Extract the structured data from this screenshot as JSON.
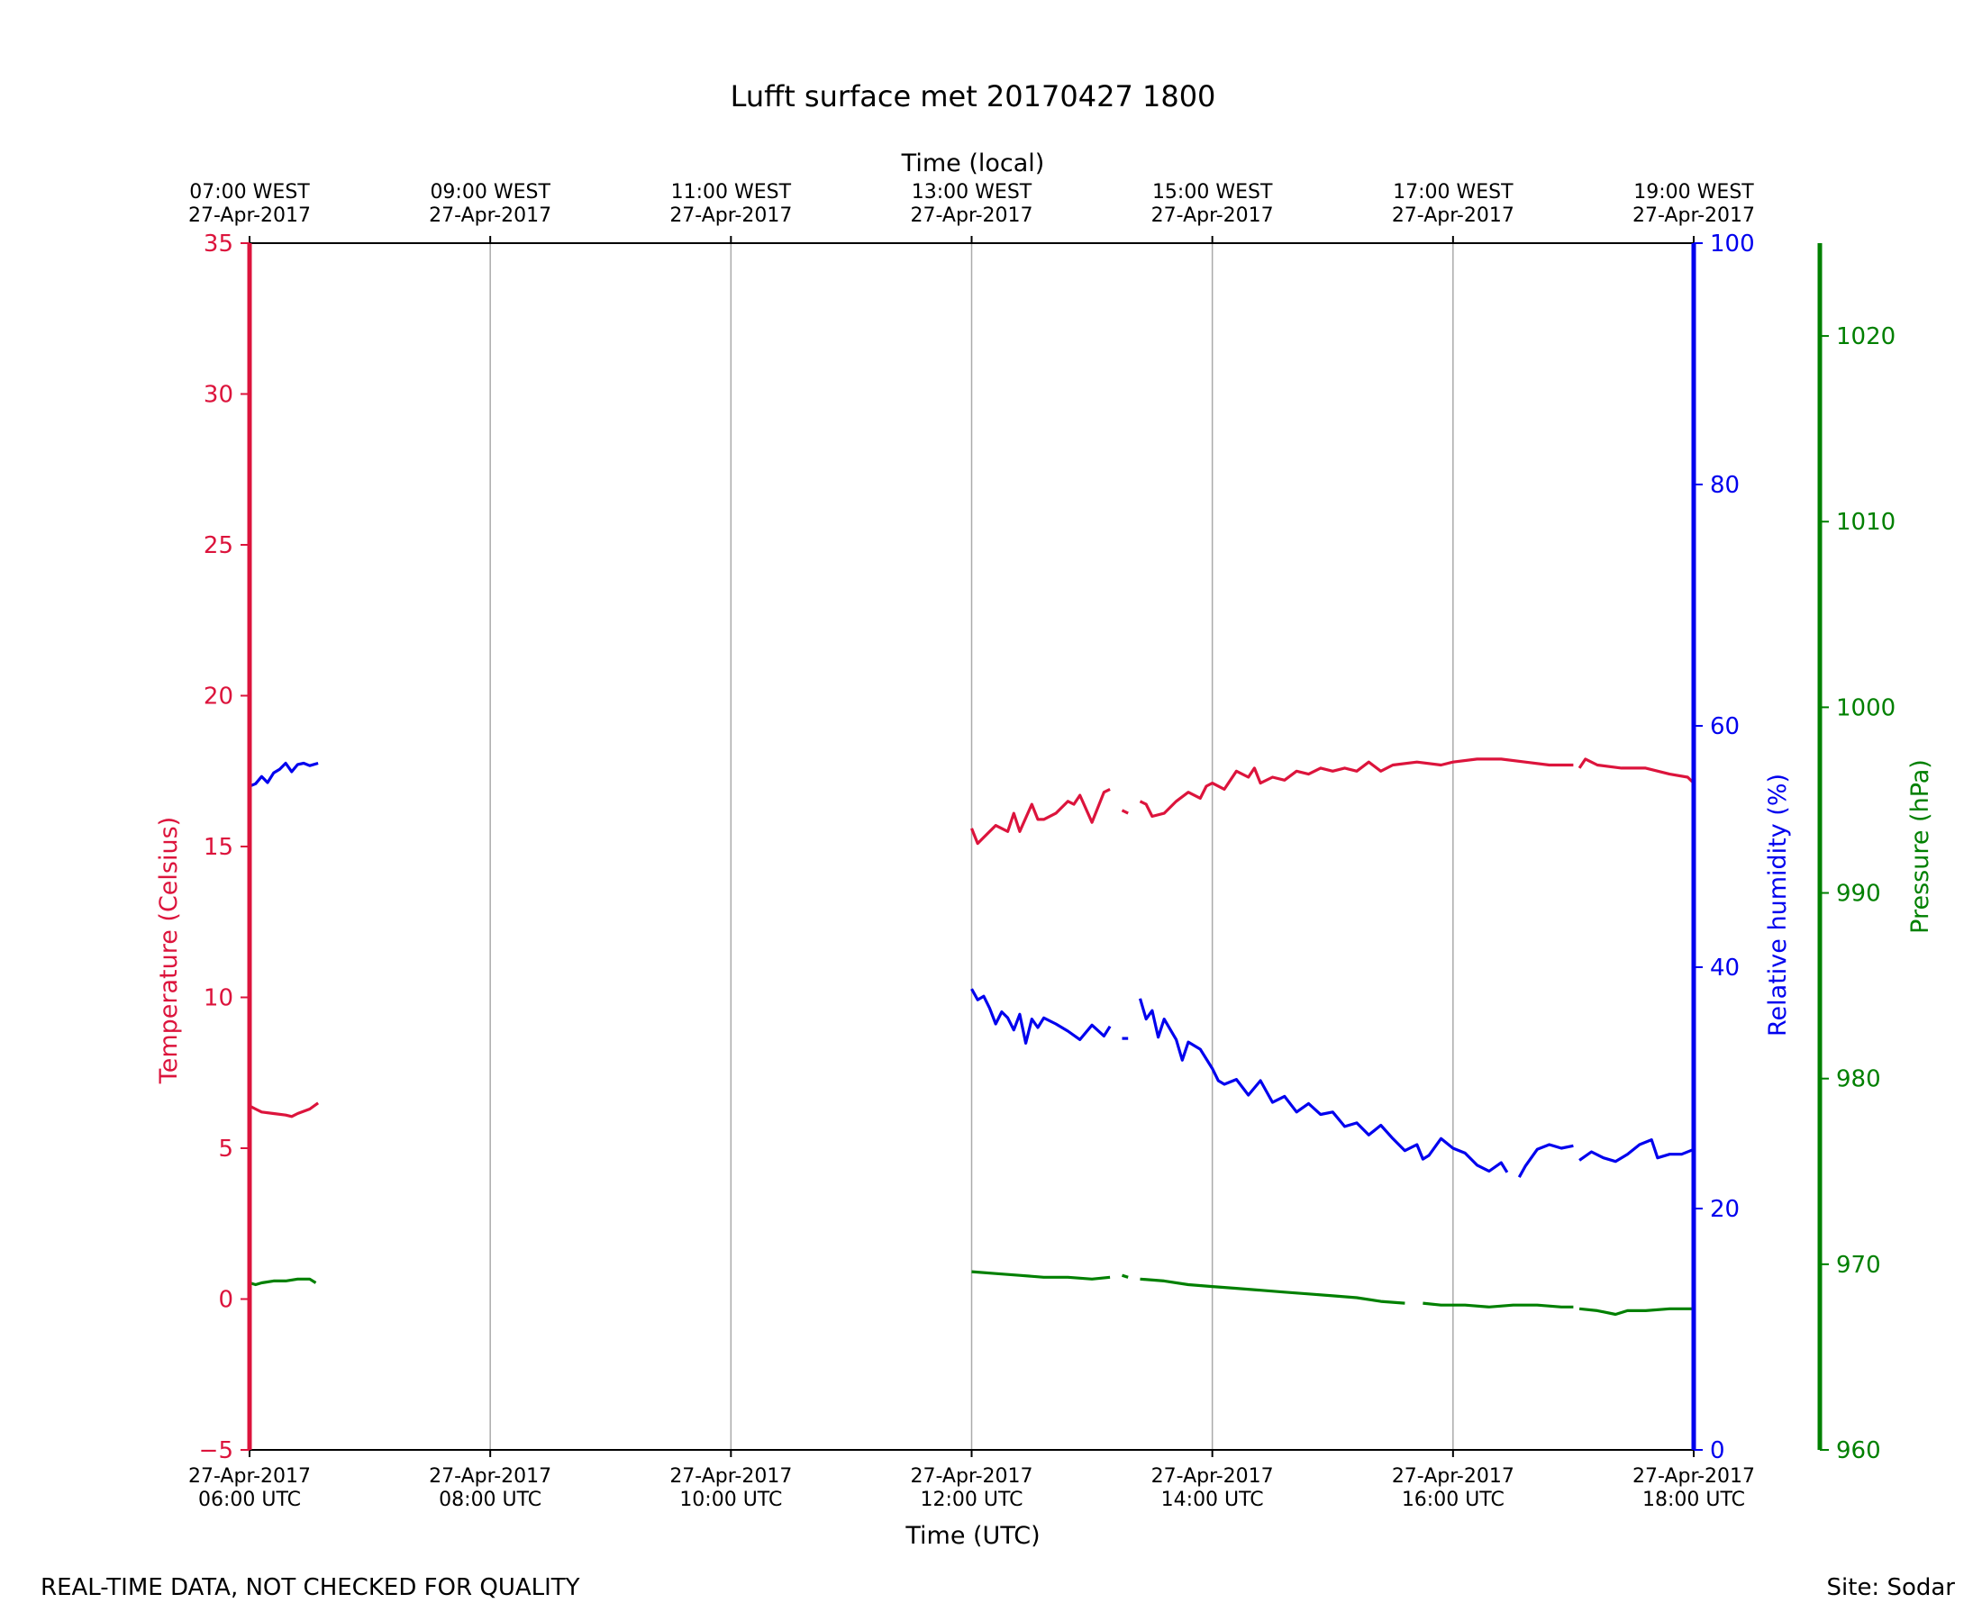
{
  "footer": {
    "disclaimer": "REAL-TIME DATA, NOT CHECKED FOR QUALITY",
    "site": "Site: Sodar"
  },
  "colors": {
    "temperature": "#dc143c",
    "humidity": "#0000ee",
    "pressure": "#008000",
    "grid": "#aaaaaa"
  },
  "chart_data": {
    "type": "line",
    "title": "Lufft surface met 20170427 1800",
    "xlabel": "Time (UTC)",
    "x2label": "Time (local)",
    "xlim_hours_utc": [
      6,
      18
    ],
    "x_ticks": [
      {
        "hour": 6,
        "date": "27-Apr-2017",
        "utc": "06:00 UTC",
        "local": "07:00 WEST"
      },
      {
        "hour": 8,
        "date": "27-Apr-2017",
        "utc": "08:00 UTC",
        "local": "09:00 WEST"
      },
      {
        "hour": 10,
        "date": "27-Apr-2017",
        "utc": "10:00 UTC",
        "local": "11:00 WEST"
      },
      {
        "hour": 12,
        "date": "27-Apr-2017",
        "utc": "12:00 UTC",
        "local": "13:00 WEST"
      },
      {
        "hour": 14,
        "date": "27-Apr-2017",
        "utc": "14:00 UTC",
        "local": "15:00 WEST"
      },
      {
        "hour": 16,
        "date": "27-Apr-2017",
        "utc": "16:00 UTC",
        "local": "17:00 WEST"
      },
      {
        "hour": 18,
        "date": "27-Apr-2017",
        "utc": "18:00 UTC",
        "local": "19:00 WEST"
      }
    ],
    "grid": true,
    "axes": {
      "temperature": {
        "label": "Temperature (Celsius)",
        "ylim": [
          -5,
          35
        ],
        "ticks": [
          -5,
          0,
          5,
          10,
          15,
          20,
          25,
          30,
          35
        ],
        "side": "left"
      },
      "humidity": {
        "label": "Relative humidity (%)",
        "ylim": [
          0,
          100
        ],
        "ticks": [
          0,
          20,
          40,
          60,
          80,
          100
        ],
        "side": "right"
      },
      "pressure": {
        "label": "Pressure (hPa)",
        "ylim": [
          960,
          1025
        ],
        "ticks": [
          960,
          970,
          980,
          990,
          1000,
          1010,
          1020
        ],
        "side": "right-offset"
      }
    },
    "series": [
      {
        "name": "Temperature",
        "axis": "temperature",
        "segments": [
          [
            [
              6.0,
              6.4
            ],
            [
              6.05,
              6.3
            ],
            [
              6.1,
              6.2
            ],
            [
              6.2,
              6.15
            ],
            [
              6.3,
              6.1
            ],
            [
              6.35,
              6.05
            ],
            [
              6.4,
              6.15
            ],
            [
              6.5,
              6.3
            ],
            [
              6.57,
              6.5
            ]
          ],
          [
            [
              12.0,
              15.6
            ],
            [
              12.05,
              15.1
            ],
            [
              12.1,
              15.3
            ],
            [
              12.2,
              15.7
            ],
            [
              12.3,
              15.5
            ],
            [
              12.35,
              16.1
            ],
            [
              12.4,
              15.5
            ],
            [
              12.5,
              16.4
            ],
            [
              12.55,
              15.9
            ],
            [
              12.6,
              15.9
            ],
            [
              12.7,
              16.1
            ],
            [
              12.8,
              16.5
            ],
            [
              12.85,
              16.4
            ],
            [
              12.9,
              16.7
            ],
            [
              13.0,
              15.8
            ],
            [
              13.1,
              16.8
            ],
            [
              13.15,
              16.9
            ]
          ],
          [
            [
              13.25,
              16.2
            ],
            [
              13.3,
              16.1
            ]
          ],
          [
            [
              13.4,
              16.5
            ],
            [
              13.45,
              16.4
            ],
            [
              13.5,
              16.0
            ],
            [
              13.6,
              16.1
            ],
            [
              13.7,
              16.5
            ],
            [
              13.8,
              16.8
            ],
            [
              13.9,
              16.6
            ],
            [
              13.95,
              17.0
            ],
            [
              14.0,
              17.1
            ],
            [
              14.1,
              16.9
            ],
            [
              14.2,
              17.5
            ],
            [
              14.3,
              17.3
            ],
            [
              14.35,
              17.6
            ],
            [
              14.4,
              17.1
            ],
            [
              14.5,
              17.3
            ],
            [
              14.6,
              17.2
            ],
            [
              14.7,
              17.5
            ],
            [
              14.8,
              17.4
            ],
            [
              14.9,
              17.6
            ],
            [
              15.0,
              17.5
            ],
            [
              15.1,
              17.6
            ],
            [
              15.2,
              17.5
            ],
            [
              15.3,
              17.8
            ],
            [
              15.4,
              17.5
            ],
            [
              15.5,
              17.7
            ],
            [
              15.7,
              17.8
            ],
            [
              15.9,
              17.7
            ],
            [
              16.0,
              17.8
            ],
            [
              16.2,
              17.9
            ],
            [
              16.4,
              17.9
            ],
            [
              16.6,
              17.8
            ],
            [
              16.8,
              17.7
            ],
            [
              17.0,
              17.7
            ]
          ],
          [
            [
              17.05,
              17.6
            ],
            [
              17.1,
              17.9
            ],
            [
              17.2,
              17.7
            ],
            [
              17.4,
              17.6
            ],
            [
              17.6,
              17.6
            ],
            [
              17.8,
              17.4
            ],
            [
              17.95,
              17.3
            ],
            [
              18.0,
              17.1
            ]
          ]
        ]
      },
      {
        "name": "Relative humidity",
        "axis": "humidity",
        "segments": [
          [
            [
              6.0,
              55.0
            ],
            [
              6.05,
              55.2
            ],
            [
              6.1,
              55.8
            ],
            [
              6.15,
              55.3
            ],
            [
              6.2,
              56.1
            ],
            [
              6.25,
              56.4
            ],
            [
              6.3,
              56.9
            ],
            [
              6.35,
              56.2
            ],
            [
              6.4,
              56.8
            ],
            [
              6.45,
              56.9
            ],
            [
              6.5,
              56.7
            ],
            [
              6.57,
              56.9
            ]
          ],
          [
            [
              12.0,
              38.2
            ],
            [
              12.05,
              37.3
            ],
            [
              12.1,
              37.6
            ],
            [
              12.15,
              36.6
            ],
            [
              12.2,
              35.3
            ],
            [
              12.25,
              36.3
            ],
            [
              12.3,
              35.8
            ],
            [
              12.35,
              34.8
            ],
            [
              12.4,
              36.1
            ],
            [
              12.45,
              33.7
            ],
            [
              12.5,
              35.7
            ],
            [
              12.55,
              35.0
            ],
            [
              12.6,
              35.8
            ],
            [
              12.7,
              35.3
            ],
            [
              12.8,
              34.7
            ],
            [
              12.9,
              34.0
            ],
            [
              13.0,
              35.2
            ],
            [
              13.1,
              34.3
            ],
            [
              13.15,
              35.1
            ]
          ],
          [
            [
              13.25,
              34.1
            ],
            [
              13.3,
              34.1
            ]
          ],
          [
            [
              13.4,
              37.4
            ],
            [
              13.45,
              35.7
            ],
            [
              13.5,
              36.4
            ],
            [
              13.55,
              34.2
            ],
            [
              13.6,
              35.7
            ],
            [
              13.7,
              34.0
            ],
            [
              13.75,
              32.3
            ],
            [
              13.8,
              33.8
            ],
            [
              13.9,
              33.2
            ],
            [
              14.0,
              31.6
            ],
            [
              14.05,
              30.6
            ],
            [
              14.1,
              30.3
            ],
            [
              14.2,
              30.7
            ],
            [
              14.3,
              29.4
            ],
            [
              14.4,
              30.6
            ],
            [
              14.5,
              28.8
            ],
            [
              14.6,
              29.3
            ],
            [
              14.7,
              28.0
            ],
            [
              14.8,
              28.7
            ],
            [
              14.9,
              27.8
            ],
            [
              15.0,
              28.0
            ],
            [
              15.1,
              26.8
            ],
            [
              15.2,
              27.1
            ],
            [
              15.3,
              26.1
            ],
            [
              15.4,
              26.9
            ],
            [
              15.5,
              25.8
            ],
            [
              15.6,
              24.8
            ],
            [
              15.7,
              25.3
            ],
            [
              15.75,
              24.1
            ],
            [
              15.8,
              24.4
            ],
            [
              15.9,
              25.8
            ],
            [
              16.0,
              25.0
            ],
            [
              16.1,
              24.6
            ],
            [
              16.2,
              23.6
            ],
            [
              16.3,
              23.1
            ],
            [
              16.4,
              23.8
            ],
            [
              16.45,
              23.0
            ]
          ],
          [
            [
              16.55,
              22.6
            ],
            [
              16.6,
              23.5
            ],
            [
              16.7,
              24.9
            ],
            [
              16.8,
              25.3
            ],
            [
              16.9,
              25.0
            ],
            [
              17.0,
              25.2
            ]
          ],
          [
            [
              17.05,
              24.0
            ],
            [
              17.15,
              24.7
            ],
            [
              17.25,
              24.2
            ],
            [
              17.35,
              23.9
            ],
            [
              17.45,
              24.5
            ],
            [
              17.55,
              25.3
            ],
            [
              17.65,
              25.7
            ],
            [
              17.7,
              24.2
            ],
            [
              17.8,
              24.5
            ],
            [
              17.9,
              24.5
            ],
            [
              18.0,
              24.9
            ]
          ]
        ]
      },
      {
        "name": "Pressure",
        "axis": "pressure",
        "segments": [
          [
            [
              6.0,
              969.0
            ],
            [
              6.05,
              968.9
            ],
            [
              6.1,
              969.0
            ],
            [
              6.2,
              969.1
            ],
            [
              6.3,
              969.1
            ],
            [
              6.4,
              969.2
            ],
            [
              6.5,
              969.2
            ],
            [
              6.55,
              969.0
            ]
          ],
          [
            [
              12.0,
              969.6
            ],
            [
              12.2,
              969.5
            ],
            [
              12.4,
              969.4
            ],
            [
              12.6,
              969.3
            ],
            [
              12.8,
              969.3
            ],
            [
              13.0,
              969.2
            ],
            [
              13.15,
              969.3
            ]
          ],
          [
            [
              13.25,
              969.4
            ],
            [
              13.3,
              969.3
            ]
          ],
          [
            [
              13.4,
              969.2
            ],
            [
              13.6,
              969.1
            ],
            [
              13.8,
              968.9
            ],
            [
              14.0,
              968.8
            ],
            [
              14.2,
              968.7
            ],
            [
              14.4,
              968.6
            ],
            [
              14.6,
              968.5
            ],
            [
              14.8,
              968.4
            ],
            [
              15.0,
              968.3
            ],
            [
              15.2,
              968.2
            ],
            [
              15.4,
              968.0
            ],
            [
              15.6,
              967.9
            ]
          ],
          [
            [
              15.75,
              967.9
            ],
            [
              15.9,
              967.8
            ],
            [
              16.1,
              967.8
            ],
            [
              16.3,
              967.7
            ],
            [
              16.5,
              967.8
            ],
            [
              16.7,
              967.8
            ],
            [
              16.9,
              967.7
            ],
            [
              17.0,
              967.7
            ]
          ],
          [
            [
              17.05,
              967.6
            ],
            [
              17.2,
              967.5
            ],
            [
              17.35,
              967.3
            ],
            [
              17.45,
              967.5
            ],
            [
              17.6,
              967.5
            ],
            [
              17.8,
              967.6
            ],
            [
              18.0,
              967.6
            ]
          ]
        ]
      }
    ]
  }
}
